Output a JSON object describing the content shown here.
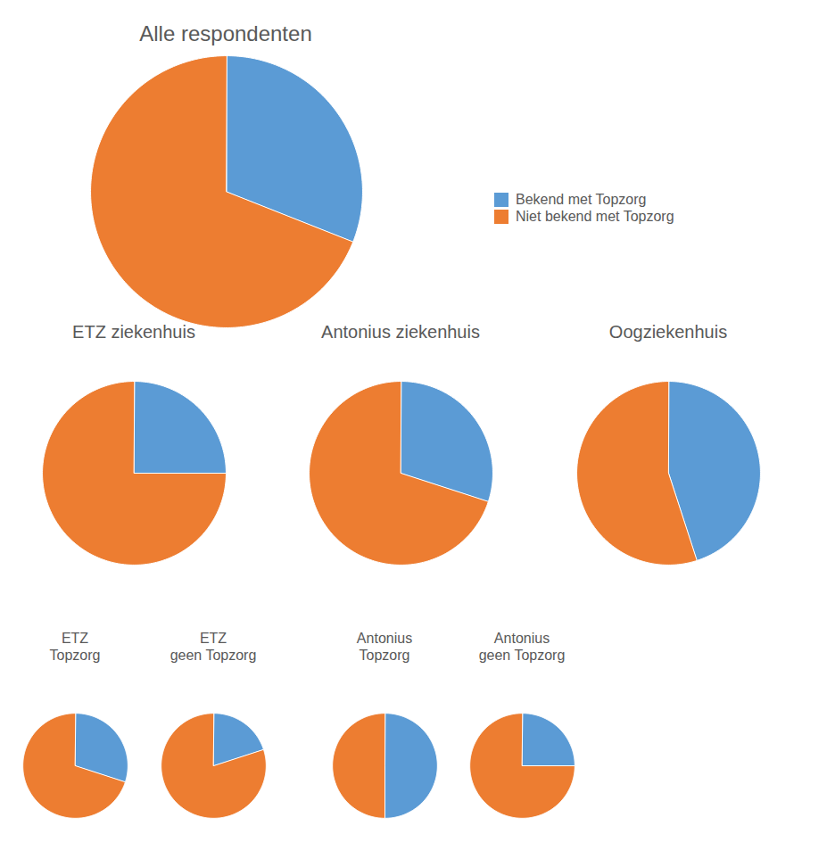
{
  "chart_data": [
    {
      "type": "pie",
      "title": "Alle respondenten",
      "categories": [
        "Bekend met Topzorg",
        "Niet bekend met Topzorg"
      ],
      "values": [
        31,
        69
      ],
      "colors": [
        "#5B9BD5",
        "#ED7D31"
      ],
      "legend": "right"
    },
    {
      "type": "pie",
      "title": "ETZ ziekenhuis",
      "categories": [
        "Bekend met Topzorg",
        "Niet bekend met Topzorg"
      ],
      "values": [
        25,
        75
      ],
      "colors": [
        "#5B9BD5",
        "#ED7D31"
      ]
    },
    {
      "type": "pie",
      "title": "Antonius ziekenhuis",
      "categories": [
        "Bekend met Topzorg",
        "Niet bekend met Topzorg"
      ],
      "values": [
        30,
        70
      ],
      "colors": [
        "#5B9BD5",
        "#ED7D31"
      ]
    },
    {
      "type": "pie",
      "title": "Oogziekenhuis",
      "categories": [
        "Bekend met Topzorg",
        "Niet bekend met Topzorg"
      ],
      "values": [
        45,
        55
      ],
      "colors": [
        "#5B9BD5",
        "#ED7D31"
      ]
    },
    {
      "type": "pie",
      "title": "ETZ\nTopzorg",
      "categories": [
        "Bekend met Topzorg",
        "Niet bekend met Topzorg"
      ],
      "values": [
        30,
        70
      ],
      "colors": [
        "#5B9BD5",
        "#ED7D31"
      ]
    },
    {
      "type": "pie",
      "title": "ETZ\ngeen Topzorg",
      "categories": [
        "Bekend met Topzorg",
        "Niet bekend met Topzorg"
      ],
      "values": [
        20,
        80
      ],
      "colors": [
        "#5B9BD5",
        "#ED7D31"
      ]
    },
    {
      "type": "pie",
      "title": "Antonius\nTopzorg",
      "categories": [
        "Bekend met Topzorg",
        "Niet bekend met Topzorg"
      ],
      "values": [
        50,
        50
      ],
      "colors": [
        "#5B9BD5",
        "#ED7D31"
      ]
    },
    {
      "type": "pie",
      "title": "Antonius\ngeen Topzorg",
      "categories": [
        "Bekend met Topzorg",
        "Niet bekend met Topzorg"
      ],
      "values": [
        25,
        75
      ],
      "colors": [
        "#5B9BD5",
        "#ED7D31"
      ]
    }
  ]
}
